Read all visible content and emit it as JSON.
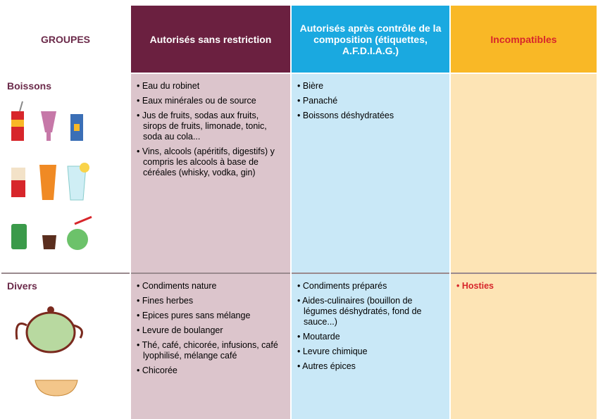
{
  "table": {
    "header": [
      "GROUPES",
      "Autorisés sans restriction",
      "Autorisés après contrôle de la composition (étiquettes, A.F.D.I.A.G.)",
      "Incompatibles"
    ],
    "rows": [
      {
        "group": "Boissons",
        "allowed": [
          "Eau du robinet",
          "Eaux minérales ou de source",
          "Jus de fruits, sodas aux fruits, sirops de fruits, limonade, tonic, soda au cola...",
          "Vins, alcools (apéritifs, digestifs) y compris les alcools à base de céréales (whisky, vodka, gin)"
        ],
        "controlled": [
          "Bière",
          "Panaché",
          "Boissons déshydratées"
        ],
        "incompatible": []
      },
      {
        "group": "Divers",
        "allowed": [
          "Condiments nature",
          "Fines herbes",
          "Epices pures sans mélange",
          "Levure de boulanger",
          "Thé, café, chicorée, infusions, café lyophilisé, mélange café",
          "Chicorée"
        ],
        "controlled": [
          "Condiments préparés",
          "Aides-culinaires (bouillon de légumes déshydratés, fond de sauce...)",
          "Moutarde",
          "Levure chimique",
          "Autres épices"
        ],
        "incompatible": [
          "Hosties"
        ]
      }
    ]
  }
}
